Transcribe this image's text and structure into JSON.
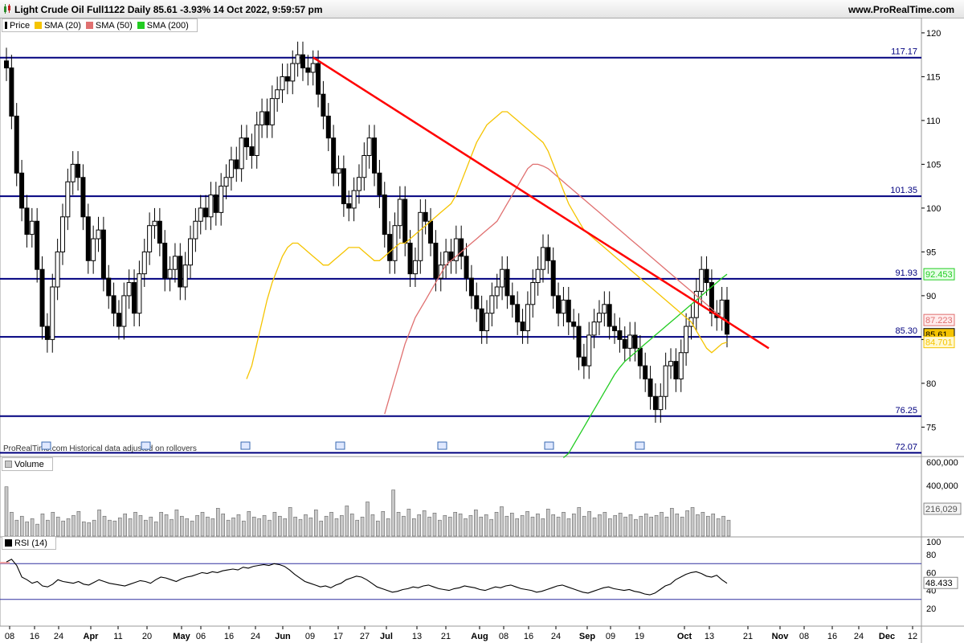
{
  "header": {
    "title": "Light Crude Oil Full1122 Daily 85.61 -3.93% 14 Oct 2022, 9:59:57 pm",
    "website": "www.ProRealTime.com"
  },
  "price_panel": {
    "legend": [
      {
        "label": "Price",
        "color": "#000000"
      },
      {
        "label": "SMA (20)",
        "color": "#f5c400"
      },
      {
        "label": "SMA (50)",
        "color": "#e07070"
      },
      {
        "label": "SMA (200)",
        "color": "#22cc22"
      }
    ],
    "note": "ProRealTime.com Historical data adjusted on rollovers"
  },
  "volume_panel": {
    "legend": "Volume"
  },
  "rsi_panel": {
    "legend": "RSI (14)"
  },
  "colors": {
    "candle_up": "#ffffff",
    "candle_down": "#000000",
    "level_line": "#00007f",
    "trendline": "#ff0000",
    "sma20": "#f5c400",
    "sma50": "#e07070",
    "sma200": "#22cc22",
    "volume_bar": "#c8c8c8",
    "rsi_line": "#000000",
    "rsi_band": "#3030a0"
  },
  "chart_data": [
    {
      "type": "candlestick",
      "title": "Light Crude Oil Full1122 Daily",
      "ylim": [
        71,
        121
      ],
      "y_ticks": [
        75,
        80,
        85,
        90,
        95,
        100,
        105,
        110,
        115,
        120
      ],
      "x_tick_labels": [
        "08",
        "16",
        "24",
        "Apr",
        "11",
        "20",
        "May",
        "06",
        "16",
        "24",
        "Jun",
        "09",
        "17",
        "27",
        "Jul",
        "13",
        "21",
        "Aug",
        "08",
        "16",
        "24",
        "Sep",
        "09",
        "19",
        "Oct",
        "13",
        "21",
        "Nov",
        "08",
        "16",
        "24",
        "Dec",
        "12"
      ],
      "last_price": 85.61,
      "horizontal_levels": [
        117.17,
        101.35,
        91.93,
        85.3,
        76.25,
        72.07
      ],
      "value_labels": {
        "sma200": 92.453,
        "sma50": 87.223,
        "price": 85.61,
        "sma20": 84.701
      },
      "trendline": {
        "from_close_index": 60,
        "from_value": 117.2,
        "to_value": 84.0
      },
      "closes": [
        116.0,
        110.5,
        104.0,
        100.0,
        97.0,
        98.5,
        93.0,
        86.5,
        85.0,
        91.0,
        95.0,
        99.0,
        103.0,
        105.0,
        103.5,
        99.0,
        94.0,
        96.5,
        97.5,
        92.0,
        90.0,
        88.0,
        86.5,
        90.0,
        91.5,
        88.0,
        92.5,
        95.0,
        98.0,
        98.5,
        96.0,
        92.0,
        93.0,
        94.5,
        91.0,
        93.5,
        96.5,
        98.5,
        100.0,
        99.0,
        101.5,
        99.5,
        102.5,
        103.5,
        105.5,
        104.5,
        108.0,
        107.0,
        106.0,
        109.5,
        111.0,
        109.5,
        112.5,
        113.5,
        115.0,
        114.5,
        116.5,
        117.5,
        116.0,
        115.5,
        116.5,
        113.0,
        110.5,
        108.0,
        104.0,
        104.5,
        100.5,
        100.0,
        102.0,
        103.5,
        106.0,
        108.0,
        104.0,
        101.5,
        97.0,
        94.0,
        98.0,
        101.0,
        96.0,
        92.5,
        94.0,
        99.5,
        98.5,
        96.0,
        92.0,
        93.5,
        95.0,
        94.0,
        96.5,
        94.5,
        92.0,
        90.0,
        88.5,
        86.0,
        88.0,
        90.0,
        91.0,
        93.0,
        90.0,
        89.0,
        87.0,
        86.0,
        89.0,
        91.5,
        93.0,
        95.5,
        94.0,
        90.0,
        88.0,
        89.5,
        87.0,
        86.5,
        83.0,
        82.0,
        85.5,
        87.0,
        88.0,
        89.0,
        86.5,
        86.0,
        85.0,
        84.0,
        85.5,
        84.0,
        82.0,
        80.5,
        78.5,
        77.0,
        78.5,
        82.0,
        82.5,
        80.5,
        83.5,
        86.5,
        87.5,
        90.5,
        93.0,
        91.5,
        88.0,
        87.5,
        89.5,
        85.61
      ],
      "sma20_closes": [
        80.5,
        82.0,
        84.5,
        87.0,
        89.5,
        91.5,
        93.0,
        94.5,
        95.5,
        96.0,
        96.0,
        95.5,
        95.0,
        94.5,
        94.0,
        93.5,
        93.5,
        94.0,
        94.5,
        95.0,
        95.5,
        95.5,
        95.5,
        95.0,
        94.5,
        94.0,
        94.0,
        94.5,
        95.0,
        95.5,
        96.0,
        96.0,
        96.5,
        97.0,
        97.5,
        98.0,
        98.5,
        99.0,
        99.5,
        100.0,
        100.5,
        101.5,
        103.0,
        104.5,
        106.0,
        107.5,
        108.5,
        109.5,
        110.0,
        110.5,
        111.0,
        111.0,
        110.5,
        110.0,
        109.5,
        109.0,
        108.5,
        108.0,
        107.5,
        106.5,
        105.0,
        103.5,
        102.0,
        100.5,
        99.5,
        98.5,
        97.5,
        97.0,
        96.5,
        96.0,
        95.5,
        95.0,
        94.5,
        94.0,
        93.5,
        93.0,
        92.5,
        92.0,
        91.5,
        91.0,
        90.5,
        90.0,
        89.5,
        89.0,
        88.5,
        88.0,
        87.5,
        87.0,
        86.0,
        85.0,
        84.0,
        83.5,
        84.0,
        84.5,
        84.7
      ],
      "sma50_closes": [
        76.5,
        78.5,
        80.5,
        82.5,
        84.5,
        86.0,
        87.5,
        88.5,
        89.5,
        90.5,
        91.5,
        92.5,
        93.5,
        94.0,
        94.5,
        95.0,
        95.5,
        96.0,
        96.5,
        97.0,
        97.5,
        98.0,
        98.5,
        99.5,
        100.5,
        101.5,
        102.5,
        103.5,
        104.5,
        105.0,
        105.0,
        104.8,
        104.5,
        104.0,
        103.5,
        103.0,
        102.5,
        102.0,
        101.5,
        101.0,
        100.5,
        100.0,
        99.5,
        99.0,
        98.5,
        98.0,
        97.5,
        97.0,
        96.5,
        96.0,
        95.5,
        95.0,
        94.5,
        94.0,
        93.5,
        93.0,
        92.5,
        92.0,
        91.5,
        91.0,
        90.5,
        90.0,
        89.5,
        89.0,
        88.5,
        88.0,
        87.5,
        87.2
      ],
      "sma200_closes": [
        71.5,
        72.0,
        73.0,
        74.0,
        75.0,
        76.0,
        77.0,
        78.0,
        79.0,
        80.0,
        81.0,
        81.8,
        82.5,
        83.0,
        83.5,
        84.0,
        84.5,
        85.0,
        85.5,
        86.0,
        86.5,
        87.0,
        87.5,
        88.0,
        88.5,
        89.0,
        89.5,
        90.0,
        90.5,
        91.0,
        91.5,
        92.0,
        92.45
      ],
      "volume_ticks": [
        "600,000",
        "400,000"
      ],
      "volume_last": "216,029",
      "volume_values": [
        0.62,
        0.3,
        0.2,
        0.25,
        0.18,
        0.22,
        0.15,
        0.28,
        0.2,
        0.3,
        0.24,
        0.19,
        0.22,
        0.26,
        0.31,
        0.18,
        0.17,
        0.2,
        0.33,
        0.25,
        0.2,
        0.19,
        0.23,
        0.28,
        0.22,
        0.3,
        0.26,
        0.2,
        0.24,
        0.18,
        0.3,
        0.27,
        0.21,
        0.33,
        0.25,
        0.22,
        0.19,
        0.26,
        0.3,
        0.24,
        0.22,
        0.35,
        0.28,
        0.2,
        0.23,
        0.27,
        0.19,
        0.31,
        0.24,
        0.22,
        0.26,
        0.2,
        0.3,
        0.25,
        0.22,
        0.36,
        0.24,
        0.21,
        0.27,
        0.23,
        0.33,
        0.19,
        0.25,
        0.3,
        0.22,
        0.26,
        0.38,
        0.28,
        0.2,
        0.24,
        0.43,
        0.27,
        0.19,
        0.31,
        0.22,
        0.58,
        0.3,
        0.25,
        0.34,
        0.22,
        0.27,
        0.32,
        0.24,
        0.29,
        0.2,
        0.26,
        0.24,
        0.3,
        0.28,
        0.22,
        0.26,
        0.33,
        0.24,
        0.27,
        0.21,
        0.3,
        0.37,
        0.25,
        0.29,
        0.22,
        0.26,
        0.31,
        0.24,
        0.28,
        0.22,
        0.34,
        0.27,
        0.24,
        0.3,
        0.22,
        0.28,
        0.36,
        0.25,
        0.31,
        0.23,
        0.27,
        0.3,
        0.22,
        0.26,
        0.29,
        0.24,
        0.27,
        0.21,
        0.25,
        0.28,
        0.24,
        0.26,
        0.3,
        0.24,
        0.35,
        0.28,
        0.24,
        0.32,
        0.36,
        0.27,
        0.3,
        0.25,
        0.28,
        0.22,
        0.25,
        0.2
      ],
      "rsi_ticks": [
        80,
        60,
        40,
        20
      ],
      "rsi_ylim": [
        0,
        100
      ],
      "rsi_bands": [
        70,
        30
      ],
      "rsi_last": 48.433,
      "rsi_values": [
        72,
        75,
        68,
        55,
        52,
        48,
        50,
        45,
        44,
        47,
        52,
        50,
        49,
        48,
        50,
        47,
        46,
        49,
        52,
        50,
        48,
        47,
        46,
        45,
        47,
        49,
        51,
        50,
        48,
        52,
        55,
        54,
        52,
        50,
        53,
        55,
        56,
        58,
        60,
        59,
        61,
        60,
        62,
        63,
        64,
        63,
        66,
        65,
        67,
        68,
        69,
        68,
        70,
        69,
        67,
        63,
        58,
        54,
        50,
        48,
        46,
        44,
        45,
        43,
        46,
        48,
        52,
        54,
        56,
        55,
        52,
        48,
        44,
        42,
        40,
        38,
        39,
        41,
        42,
        44,
        43,
        45,
        46,
        44,
        42,
        41,
        40,
        42,
        43,
        45,
        44,
        43,
        41,
        40,
        42,
        44,
        43,
        45,
        46,
        44,
        42,
        41,
        40,
        38,
        39,
        41,
        43,
        45,
        46,
        44,
        42,
        40,
        38,
        37,
        39,
        41,
        43,
        44,
        42,
        41,
        40,
        41,
        39,
        38,
        36,
        35,
        37,
        41,
        45,
        47,
        52,
        55,
        58,
        60,
        61,
        59,
        56,
        55,
        57,
        52,
        48
      ]
    }
  ]
}
